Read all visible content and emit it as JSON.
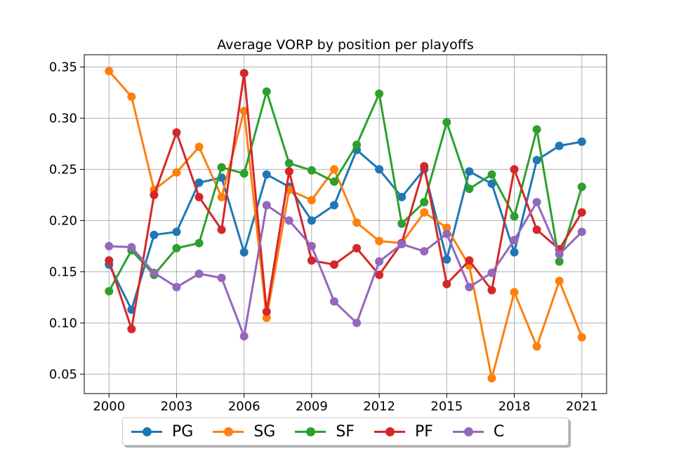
{
  "chart_data": {
    "type": "line",
    "title": "Average VORP by position per playoffs",
    "x": [
      2000,
      2001,
      2002,
      2003,
      2004,
      2005,
      2006,
      2007,
      2008,
      2009,
      2010,
      2011,
      2012,
      2013,
      2014,
      2015,
      2016,
      2017,
      2018,
      2019,
      2020,
      2021
    ],
    "xticks": [
      "2000",
      "2003",
      "2006",
      "2009",
      "2012",
      "2015",
      "2018",
      "2021"
    ],
    "yticks": [
      "0.05",
      "0.10",
      "0.15",
      "0.20",
      "0.25",
      "0.30",
      "0.35"
    ],
    "xlim": [
      1998.9,
      2022.1
    ],
    "ylim": [
      0.031,
      0.362
    ],
    "grid": true,
    "legend_position": "bottom-center",
    "series": [
      {
        "name": "PG",
        "color": "#1f77b4",
        "values": [
          0.157,
          0.113,
          0.186,
          0.189,
          0.237,
          0.242,
          0.169,
          0.245,
          0.233,
          0.2,
          0.215,
          0.269,
          0.25,
          0.223,
          0.25,
          0.162,
          0.248,
          0.236,
          0.169,
          0.259,
          0.273,
          0.277
        ]
      },
      {
        "name": "SG",
        "color": "#ff7f0e",
        "values": [
          0.346,
          0.321,
          0.23,
          0.247,
          0.272,
          0.223,
          0.307,
          0.105,
          0.23,
          0.22,
          0.25,
          0.198,
          0.18,
          0.178,
          0.208,
          0.193,
          0.156,
          0.046,
          0.13,
          0.077,
          0.141,
          0.086
        ]
      },
      {
        "name": "SF",
        "color": "#2ca02c",
        "values": [
          0.131,
          0.171,
          0.147,
          0.173,
          0.178,
          0.252,
          0.246,
          0.326,
          0.256,
          0.249,
          0.238,
          0.274,
          0.324,
          0.197,
          0.218,
          0.296,
          0.231,
          0.245,
          0.204,
          0.289,
          0.16,
          0.233
        ]
      },
      {
        "name": "PF",
        "color": "#d62728",
        "values": [
          0.161,
          0.094,
          0.225,
          0.286,
          0.223,
          0.191,
          0.344,
          0.111,
          0.248,
          0.161,
          0.157,
          0.173,
          0.147,
          0.178,
          0.253,
          0.138,
          0.161,
          0.132,
          0.25,
          0.191,
          0.172,
          0.208
        ]
      },
      {
        "name": "C",
        "color": "#9467bd",
        "values": [
          0.175,
          0.174,
          0.149,
          0.135,
          0.148,
          0.144,
          0.087,
          0.215,
          0.2,
          0.175,
          0.121,
          0.1,
          0.16,
          0.177,
          0.17,
          0.187,
          0.135,
          0.149,
          0.181,
          0.218,
          0.167,
          0.189
        ]
      }
    ]
  }
}
